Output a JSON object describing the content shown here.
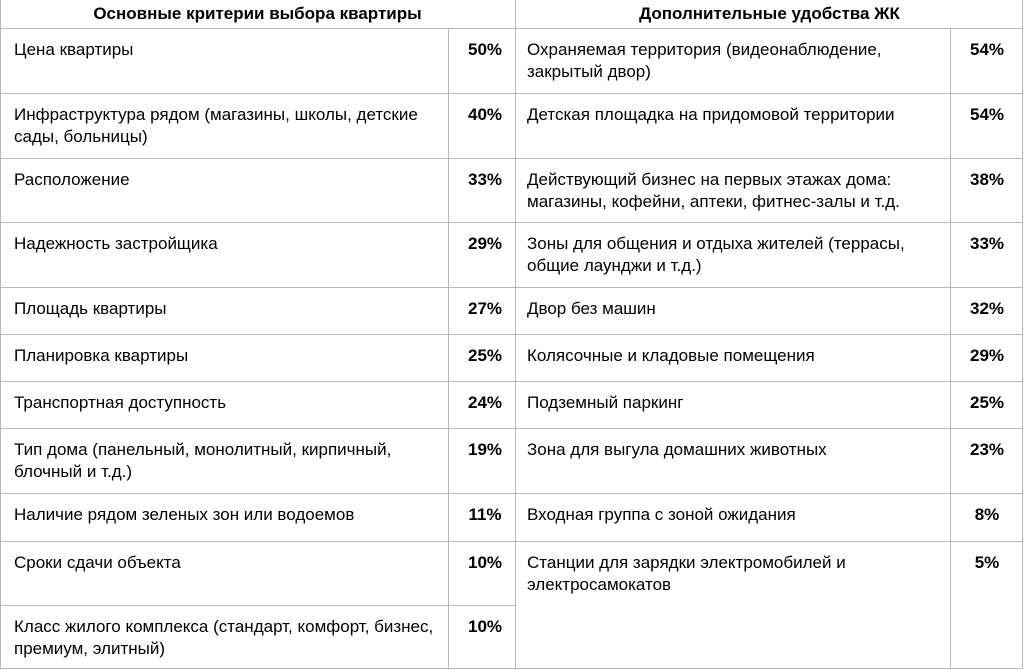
{
  "headers": {
    "left": "Основные критерии выбора квартиры",
    "right": "Дополнительные удобства ЖК"
  },
  "left_rows": [
    {
      "label": "Цена квартиры",
      "value": "50%"
    },
    {
      "label": "Инфраструктура рядом (магазины, школы, детские сады, больницы)",
      "value": "40%"
    },
    {
      "label": "Расположение",
      "value": "33%"
    },
    {
      "label": "Надежность застройщика",
      "value": "29%"
    },
    {
      "label": "Площадь квартиры",
      "value": "27%"
    },
    {
      "label": "Планировка квартиры",
      "value": "25%"
    },
    {
      "label": "Транспортная доступность",
      "value": "24%"
    },
    {
      "label": "Тип дома (панельный, монолитный, кирпичный, блочный и т.д.)",
      "value": "19%"
    },
    {
      "label": "Наличие рядом зеленых зон или водоемов",
      "value": "11%"
    },
    {
      "label": "Сроки сдачи объекта",
      "value": "10%"
    },
    {
      "label": "Класс жилого комплекса (стандарт, комфорт, бизнес, премиум, элитный)",
      "value": "10%"
    }
  ],
  "right_rows": [
    {
      "label": "Охраняемая территория (видеонаблюдение, закрытый двор)",
      "value": "54%"
    },
    {
      "label": "Детская площадка на придомовой территории",
      "value": "54%"
    },
    {
      "label": "Действующий бизнес на первых этажах дома: магазины, кофейни, аптеки, фитнес-залы и т.д.",
      "value": "38%"
    },
    {
      "label": "Зоны для общения и отдыха жителей (террасы, общие лаунджи и т.д.)",
      "value": "33%"
    },
    {
      "label": "Двор без машин",
      "value": "32%"
    },
    {
      "label": "Колясочные и кладовые помещения",
      "value": "29%"
    },
    {
      "label": "Подземный паркинг",
      "value": "25%"
    },
    {
      "label": "Зона для выгула домашних животных",
      "value": "23%"
    },
    {
      "label": "Входная группа с зоной ожидания",
      "value": "8%"
    },
    {
      "label": "Станции для зарядки электромобилей и электросамокатов",
      "value": "5%"
    }
  ]
}
